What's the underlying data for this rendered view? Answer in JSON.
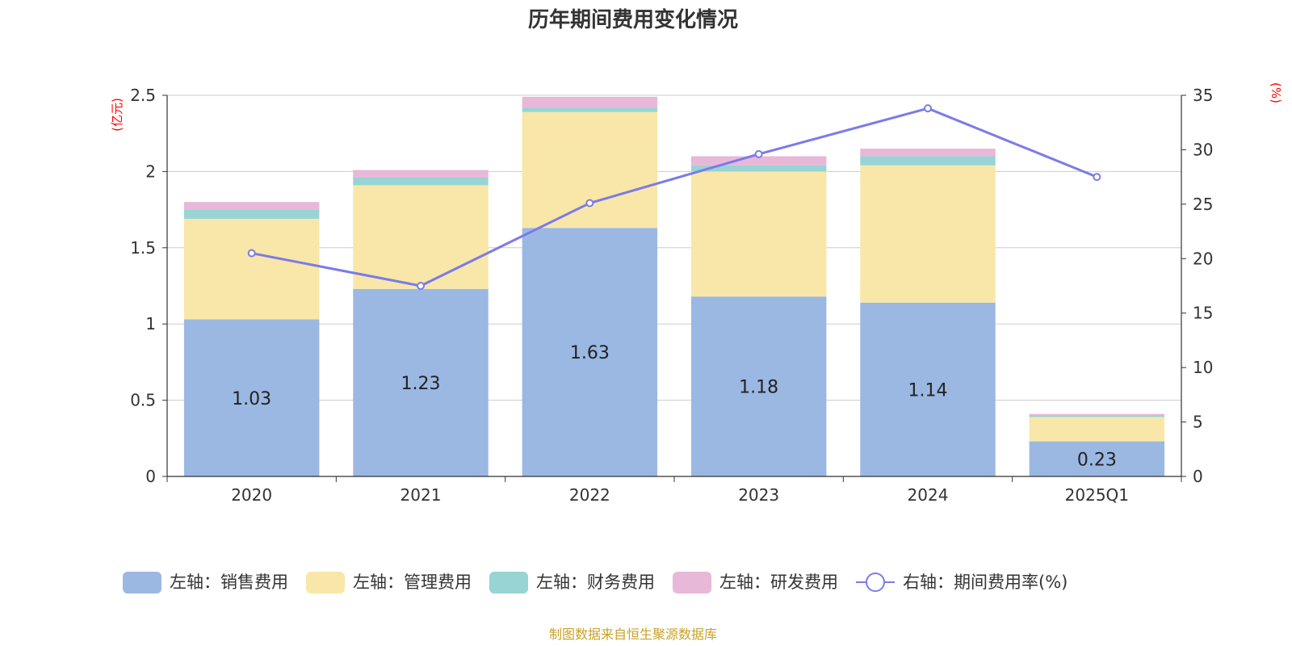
{
  "chart_data": {
    "type": "bar",
    "title": "历年期间费用变化情况",
    "categories": [
      "2020",
      "2021",
      "2022",
      "2023",
      "2024",
      "2025Q1"
    ],
    "left_axis": {
      "unit": "(亿元)",
      "ylim": [
        0,
        2.5
      ],
      "ticks": [
        "0",
        "0.5",
        "1",
        "1.5",
        "2",
        "2.5"
      ],
      "tick_values": [
        0,
        0.5,
        1,
        1.5,
        2,
        2.5
      ]
    },
    "right_axis": {
      "unit": "(%)",
      "ylim": [
        0,
        35
      ],
      "ticks": [
        "0",
        "5",
        "10",
        "15",
        "20",
        "25",
        "30",
        "35"
      ],
      "tick_values": [
        0,
        5,
        10,
        15,
        20,
        25,
        30,
        35
      ]
    },
    "series": [
      {
        "name": "左轴：销售费用",
        "kind": "bar",
        "color": "#9bb8e2",
        "values": [
          1.03,
          1.23,
          1.63,
          1.18,
          1.14,
          0.23
        ],
        "labels": [
          "1.03",
          "1.23",
          "1.63",
          "1.18",
          "1.14",
          "0.23"
        ]
      },
      {
        "name": "左轴：管理费用",
        "kind": "bar",
        "color": "#f8e7a8",
        "values": [
          0.66,
          0.68,
          0.76,
          0.82,
          0.9,
          0.16
        ]
      },
      {
        "name": "左轴：财务费用",
        "kind": "bar",
        "color": "#98d4d4",
        "values": [
          0.06,
          0.05,
          0.03,
          0.04,
          0.06,
          0.01
        ]
      },
      {
        "name": "左轴：研发费用",
        "kind": "bar",
        "color": "#e8b8d8",
        "values": [
          0.05,
          0.05,
          0.07,
          0.06,
          0.05,
          0.01
        ]
      },
      {
        "name": "右轴：期间费用率(%)",
        "kind": "line",
        "axis": "right",
        "color": "#7b7be8",
        "values": [
          20.5,
          17.5,
          25.1,
          29.6,
          33.8,
          27.5
        ]
      }
    ],
    "grid": true,
    "legend_position": "bottom"
  },
  "source_note": "制图数据来自恒生聚源数据库"
}
